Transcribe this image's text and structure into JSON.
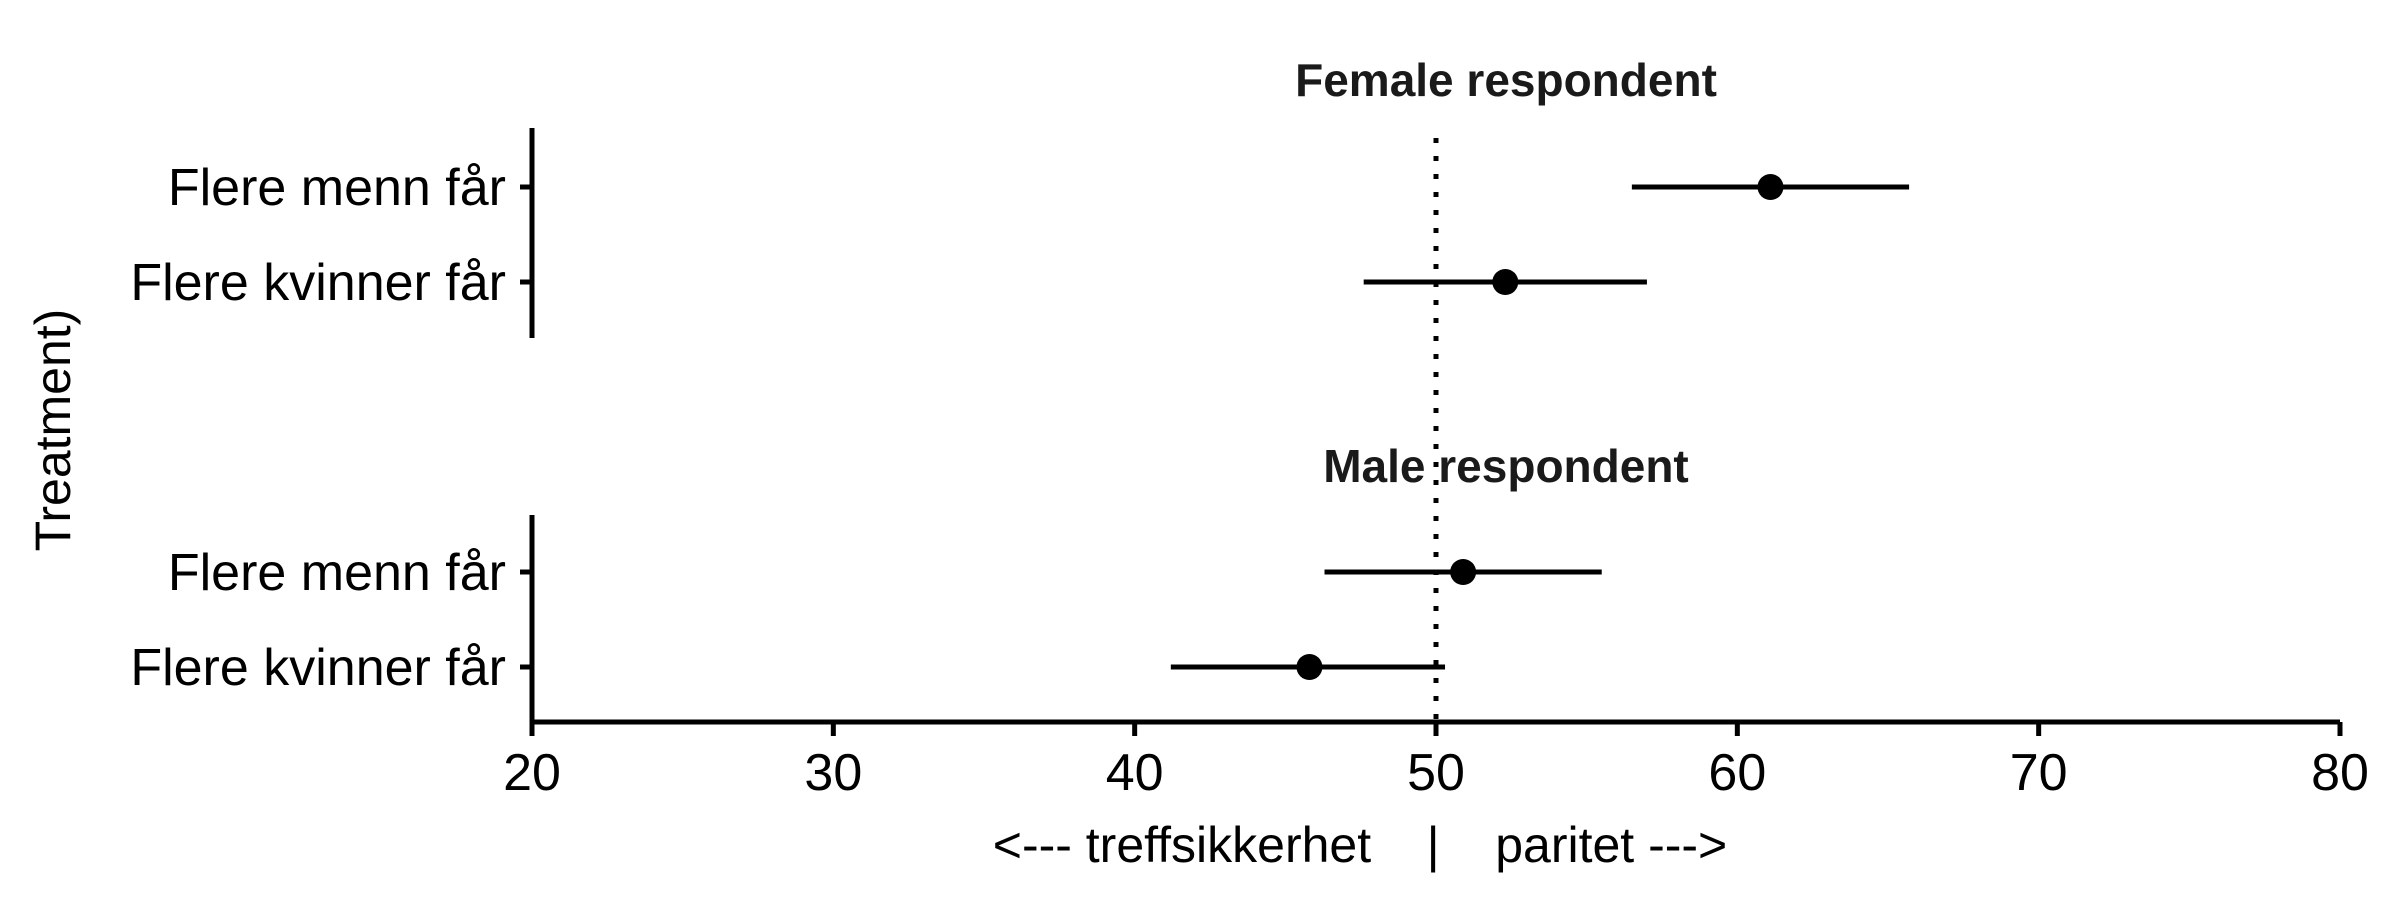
{
  "chart_data": {
    "type": "scatter",
    "subtype": "forest-plot-with-confidence-intervals",
    "ylabel": "Treatment)",
    "xlabel": "<--- treffsikkerhet    |    paritet --->",
    "xlim": [
      20,
      80
    ],
    "xticks": [
      20,
      30,
      40,
      50,
      60,
      70,
      80
    ],
    "reference_line": {
      "x": 50,
      "style": "dotted"
    },
    "grid": false,
    "panels": [
      {
        "title": "Female respondent",
        "categories": [
          "Flere menn får",
          "Flere kvinner får"
        ],
        "estimates": [
          61.1,
          52.3
        ],
        "ci_low": [
          56.5,
          47.6
        ],
        "ci_high": [
          65.7,
          57.0
        ]
      },
      {
        "title": "Male respondent",
        "categories": [
          "Flere menn får",
          "Flere kvinner får"
        ],
        "estimates": [
          50.9,
          45.8
        ],
        "ci_low": [
          46.3,
          41.2
        ],
        "ci_high": [
          55.5,
          50.3
        ]
      }
    ]
  }
}
